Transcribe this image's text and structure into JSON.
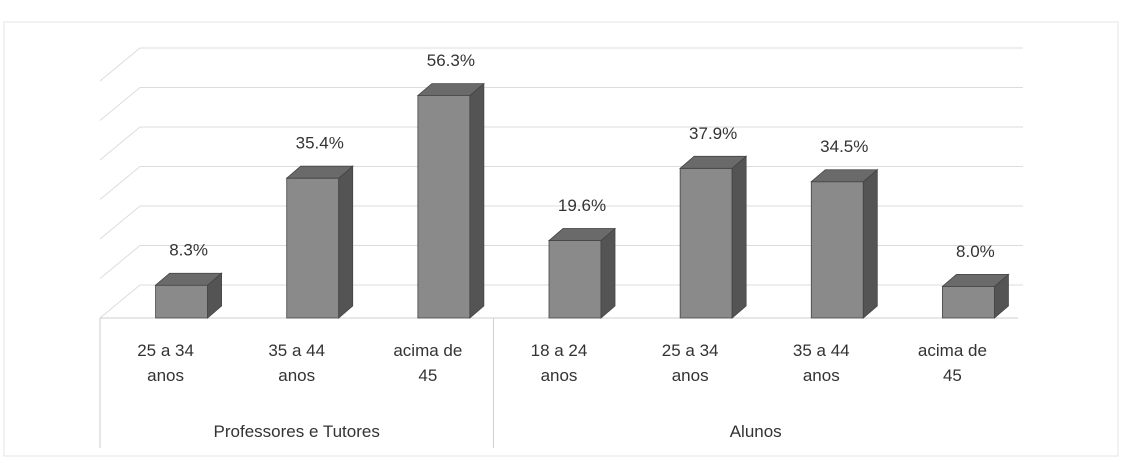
{
  "chart_data": {
    "type": "bar3d",
    "groups": [
      {
        "name": "Professores e Tutores",
        "categories": [
          "25 a 34 anos",
          "35 a 44 anos",
          "acima de 45"
        ],
        "values": [
          8.3,
          35.4,
          56.3
        ],
        "value_labels": [
          "8.3%",
          "35.4%",
          "56.3%"
        ]
      },
      {
        "name": "Alunos",
        "categories": [
          "18 a 24 anos",
          "25 a 34 anos",
          "35 a 44 anos",
          "acima de 45"
        ],
        "values": [
          19.6,
          37.9,
          34.5,
          8.0
        ],
        "value_labels": [
          "19.6%",
          "37.9%",
          "34.5%",
          "8.0%"
        ]
      }
    ],
    "color": "#8a8a8a",
    "ylim": [
      0,
      60
    ],
    "yticks": [
      0,
      10,
      20,
      30,
      40,
      50,
      60
    ],
    "grid": true
  }
}
